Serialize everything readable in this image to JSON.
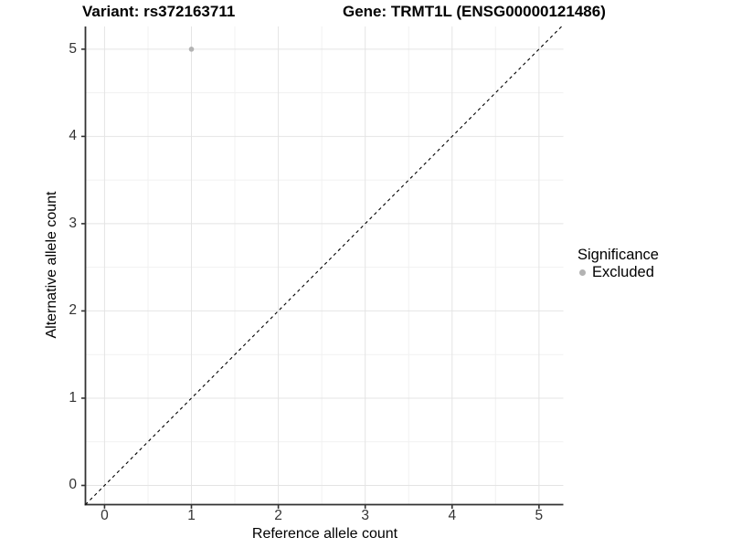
{
  "chart_data": {
    "type": "scatter",
    "titles": [
      "Variant: rs372163711",
      "Gene: TRMT1L (ENSG00000121486)"
    ],
    "xlabel": "Reference allele count",
    "ylabel": "Alternative allele count",
    "xlim": [
      -0.22,
      5.28
    ],
    "ylim": [
      -0.22,
      5.26
    ],
    "xticks": [
      0,
      1,
      2,
      3,
      4,
      5
    ],
    "yticks": [
      0,
      1,
      2,
      3,
      4,
      5
    ],
    "grid": {
      "show": true,
      "major_color": "#e4e4e4",
      "minor_color": "#f1f1f1"
    },
    "axis_color": "#333333",
    "background_color": "#ffffff",
    "series": [
      {
        "name": "Excluded",
        "color": "#b3b3b3",
        "points": [
          [
            1,
            5
          ]
        ]
      }
    ],
    "reference_line": {
      "slope": 1,
      "intercept": 0,
      "style": "dashed",
      "color": "#000000"
    },
    "legend": {
      "position": "right",
      "title": "Significance",
      "items": [
        {
          "label": "Excluded",
          "color": "#b3b3b3"
        }
      ]
    }
  }
}
